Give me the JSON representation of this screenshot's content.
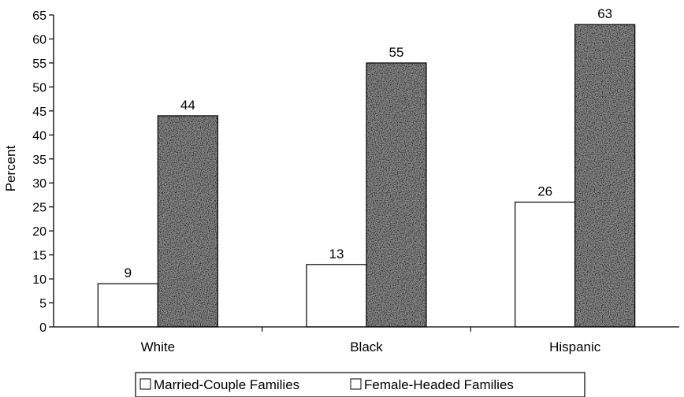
{
  "chart_data": {
    "type": "bar",
    "categories": [
      "White",
      "Black",
      "Hispanic"
    ],
    "series": [
      {
        "name": "Married-Couple Families",
        "values": [
          9,
          13,
          26
        ],
        "fill": "#ffffff"
      },
      {
        "name": "Female-Headed Families",
        "values": [
          44,
          55,
          63
        ],
        "fill": "#6f6f6f"
      }
    ],
    "ylabel": "Percent",
    "xlabel": "",
    "ylim": [
      0,
      65
    ],
    "yticks": [
      0,
      5,
      10,
      15,
      20,
      25,
      30,
      35,
      40,
      45,
      50,
      55,
      60,
      65
    ],
    "grid": false,
    "legend_position": "bottom",
    "data_labels": true
  }
}
